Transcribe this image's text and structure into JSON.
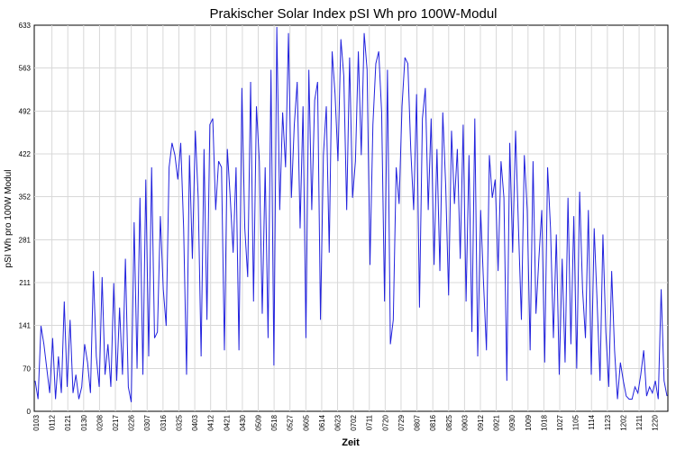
{
  "chart_data": {
    "type": "line",
    "title": "Prakischer Solar Index pSI  Wh pro 100W-Modul",
    "xlabel": "Zeit",
    "ylabel": "pSI Wh pro 100W Modul",
    "ylim": [
      0,
      633
    ],
    "yticks": [
      0,
      70,
      141,
      211,
      281,
      352,
      422,
      492,
      563,
      633
    ],
    "xticks": [
      "0103",
      "0112",
      "0121",
      "0130",
      "0208",
      "0217",
      "0226",
      "0307",
      "0316",
      "0325",
      "0403",
      "0412",
      "0421",
      "0430",
      "0509",
      "0518",
      "0527",
      "0605",
      "0614",
      "0623",
      "0702",
      "0711",
      "0720",
      "0729",
      "0807",
      "0816",
      "0825",
      "0903",
      "0912",
      "0921",
      "0930",
      "1009",
      "1018",
      "1027",
      "1105",
      "1114",
      "1123",
      "1202",
      "1211",
      "1220"
    ],
    "grid": true,
    "legend": "none",
    "color": "#2222dd",
    "series": [
      {
        "values": [
          50,
          20,
          140,
          110,
          70,
          30,
          120,
          20,
          90,
          30,
          180,
          40,
          150,
          30,
          60,
          20,
          40,
          110,
          80,
          30,
          230,
          90,
          40,
          220,
          60,
          110,
          40,
          210,
          50,
          170,
          60,
          250,
          40,
          15,
          310,
          70,
          350,
          60,
          380,
          90,
          400,
          120,
          130,
          320,
          200,
          140,
          400,
          440,
          420,
          380,
          440,
          300,
          60,
          420,
          250,
          460,
          350,
          90,
          430,
          150,
          470,
          480,
          330,
          410,
          400,
          100,
          430,
          350,
          260,
          400,
          100,
          530,
          300,
          220,
          540,
          180,
          500,
          410,
          160,
          400,
          120,
          560,
          75,
          630,
          330,
          490,
          400,
          620,
          350,
          470,
          540,
          300,
          500,
          120,
          560,
          330,
          510,
          540,
          150,
          420,
          500,
          260,
          590,
          520,
          410,
          610,
          550,
          330,
          580,
          350,
          410,
          590,
          420,
          620,
          560,
          240,
          470,
          570,
          590,
          490,
          180,
          560,
          110,
          150,
          400,
          340,
          500,
          580,
          570,
          430,
          330,
          520,
          170,
          480,
          530,
          330,
          480,
          240,
          430,
          230,
          490,
          370,
          190,
          460,
          340,
          430,
          250,
          470,
          180,
          420,
          130,
          480,
          90,
          330,
          210,
          100,
          420,
          350,
          380,
          230,
          410,
          350,
          50,
          440,
          260,
          460,
          300,
          150,
          420,
          330,
          100,
          410,
          160,
          250,
          330,
          80,
          400,
          300,
          120,
          290,
          60,
          250,
          80,
          350,
          110,
          320,
          70,
          360,
          200,
          120,
          330,
          60,
          300,
          180,
          50,
          290,
          130,
          40,
          230,
          100,
          20,
          80,
          50,
          25,
          20,
          20,
          40,
          30,
          60,
          100,
          25,
          40,
          30,
          50,
          20,
          200,
          50,
          25
        ]
      }
    ]
  }
}
